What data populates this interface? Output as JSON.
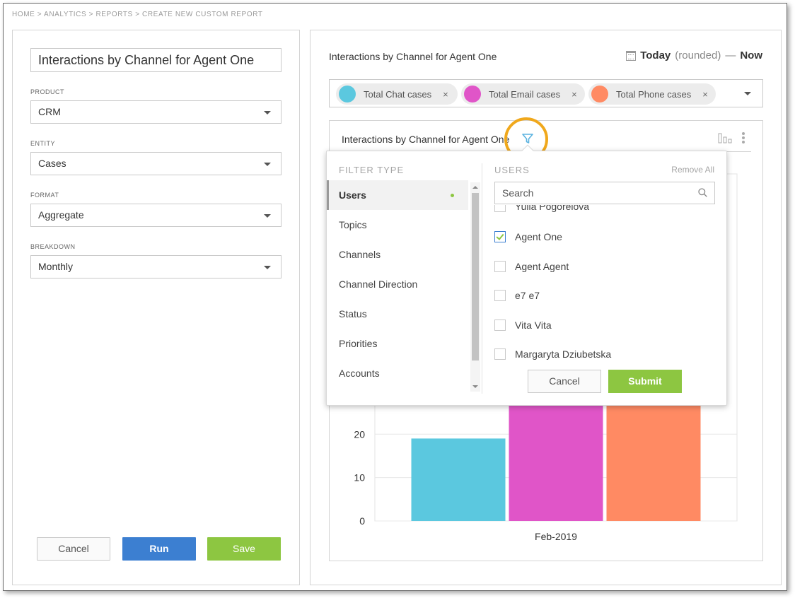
{
  "breadcrumb": "HOME > ANALYTICS > REPORTS > CREATE NEW CUSTOM REPORT",
  "form": {
    "report_name": "Interactions by Channel for Agent One",
    "fields": [
      {
        "label": "PRODUCT",
        "value": "CRM"
      },
      {
        "label": "ENTITY",
        "value": "Cases"
      },
      {
        "label": "FORMAT",
        "value": "Aggregate"
      },
      {
        "label": "BREAKDOWN",
        "value": "Monthly"
      }
    ],
    "buttons": {
      "cancel": "Cancel",
      "run": "Run",
      "save": "Save"
    }
  },
  "report": {
    "title": "Interactions by Channel for Agent One",
    "date": {
      "today": "Today",
      "rounded": "(rounded)",
      "dash": "—",
      "now": "Now"
    },
    "series": [
      {
        "label": "Total Chat cases",
        "color": "#5bc8df"
      },
      {
        "label": "Total Email cases",
        "color": "#e055c8"
      },
      {
        "label": "Total Phone cases",
        "color": "#ff8a63"
      }
    ],
    "chip_close": "×"
  },
  "chart_data": {
    "type": "bar",
    "title": "Interactions by Channel for Agent One",
    "categories": [
      "Feb-2019"
    ],
    "series": [
      {
        "name": "Total Chat cases",
        "values": [
          19
        ],
        "color": "#5bc8df"
      },
      {
        "name": "Total Email cases",
        "values": [
          29
        ],
        "color": "#e055c8"
      },
      {
        "name": "Total Phone cases",
        "values": [
          29
        ],
        "color": "#ff8a63"
      }
    ],
    "visible_ticks": [
      0,
      10,
      20
    ],
    "ylim": [
      0,
      80
    ]
  },
  "filter_popover": {
    "filter_type_heading": "FILTER TYPE",
    "users_heading": "USERS",
    "remove_all": "Remove All",
    "filter_types": [
      "Users",
      "Topics",
      "Channels",
      "Channel Direction",
      "Status",
      "Priorities",
      "Accounts"
    ],
    "active_filter_type": "Users",
    "search_placeholder": "Search",
    "users": [
      {
        "name": "Yulia Pogorelova",
        "checked": false
      },
      {
        "name": "Agent One",
        "checked": true
      },
      {
        "name": "Agent Agent",
        "checked": false
      },
      {
        "name": "e7 e7",
        "checked": false
      },
      {
        "name": "Vita Vita",
        "checked": false
      },
      {
        "name": "Margaryta Dziubetska",
        "checked": false
      }
    ],
    "cancel": "Cancel",
    "submit": "Submit"
  }
}
